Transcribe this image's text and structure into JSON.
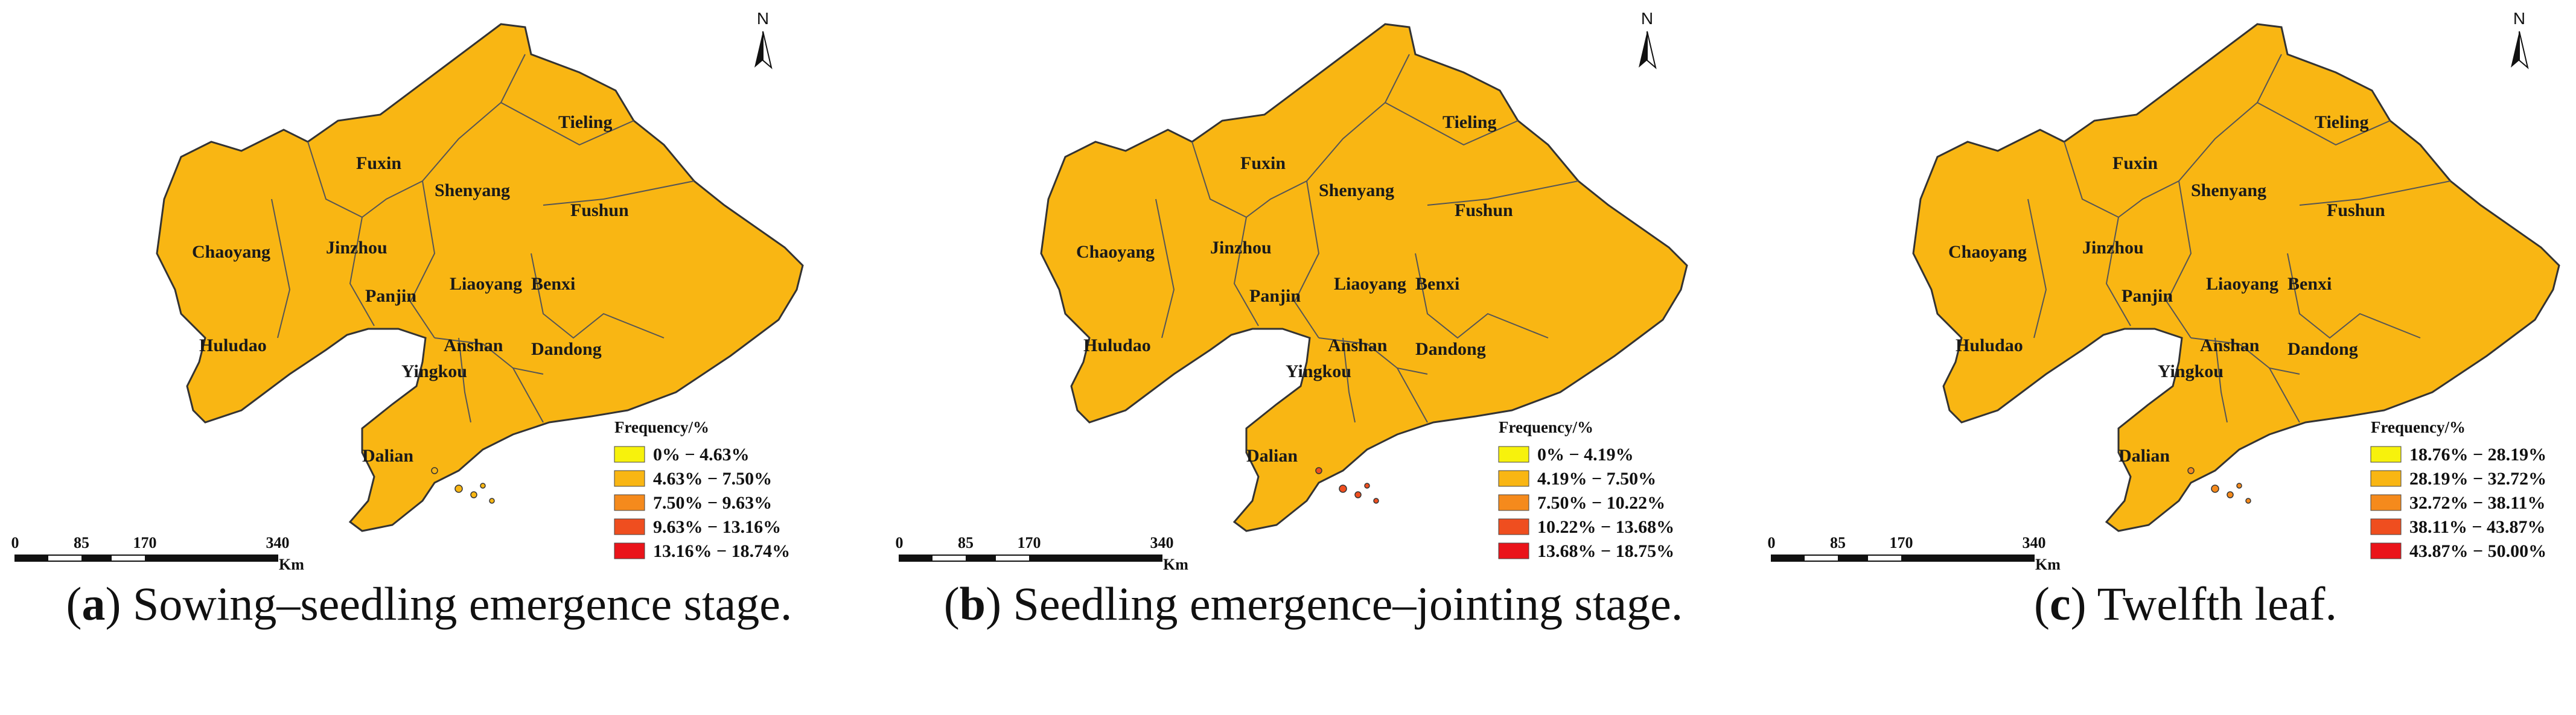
{
  "north_label": "N",
  "legend_title": "Frequency/%",
  "scale_bar": {
    "ticks": [
      "0",
      "85",
      "170",
      "340"
    ],
    "unit": "Km"
  },
  "region_names": [
    "Tieling",
    "Fuxin",
    "Shenyang",
    "Fushun",
    "Chaoyang",
    "Jinzhou",
    "Liaoyang",
    "Benxi",
    "Panjin",
    "Huludao",
    "Anshan",
    "Dandong",
    "Yingkou",
    "Dalian"
  ],
  "panels": [
    {
      "caption_open": "(",
      "caption_letter": "a",
      "caption_rest": ") Sowing–seedling emergence stage.",
      "legend": [
        {
          "label": "0% − 4.63%",
          "color": "#f7f20c"
        },
        {
          "label": "4.63% − 7.50%",
          "color": "#f9b613"
        },
        {
          "label": "7.50% − 9.63%",
          "color": "#f58a1c"
        },
        {
          "label": "9.63% − 13.16%",
          "color": "#ef4e1f"
        },
        {
          "label": "13.16% − 18.74%",
          "color": "#ea141a"
        }
      ]
    },
    {
      "caption_open": "(",
      "caption_letter": "b",
      "caption_rest": ") Seedling emergence–jointing stage.",
      "legend": [
        {
          "label": "0% − 4.19%",
          "color": "#f7f20c"
        },
        {
          "label": "4.19% − 7.50%",
          "color": "#f9b613"
        },
        {
          "label": "7.50% − 10.22%",
          "color": "#f58a1c"
        },
        {
          "label": "10.22% − 13.68%",
          "color": "#ef4e1f"
        },
        {
          "label": "13.68% − 18.75%",
          "color": "#ea141a"
        }
      ]
    },
    {
      "caption_open": "(",
      "caption_letter": "c",
      "caption_rest": ") Twelfth leaf.",
      "legend": [
        {
          "label": "18.76% − 28.19%",
          "color": "#f7f20c"
        },
        {
          "label": "28.19% − 32.72%",
          "color": "#f9b613"
        },
        {
          "label": "32.72% − 38.11%",
          "color": "#f58a1c"
        },
        {
          "label": "38.11% − 43.87%",
          "color": "#ef4e1f"
        },
        {
          "label": "43.87% − 50.00%",
          "color": "#ea141a"
        }
      ]
    }
  ]
}
